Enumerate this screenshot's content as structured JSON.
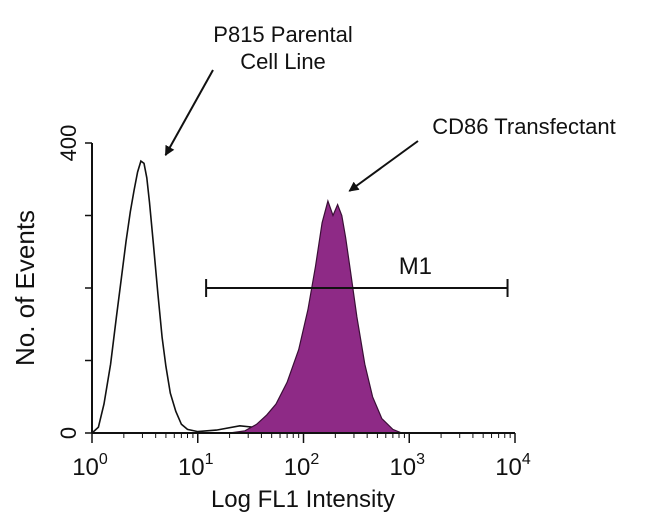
{
  "chart_data": {
    "type": "area",
    "title": "",
    "xlabel": "Log FL1 Intensity",
    "ylabel": "No. of Events",
    "x_scale": "log",
    "xlim": [
      1,
      10000
    ],
    "ylim": [
      0,
      400
    ],
    "x_ticks": [
      {
        "value": 1,
        "base": "10",
        "exp": "0"
      },
      {
        "value": 10,
        "base": "10",
        "exp": "1"
      },
      {
        "value": 100,
        "base": "10",
        "exp": "2"
      },
      {
        "value": 1000,
        "base": "10",
        "exp": "3"
      },
      {
        "value": 10000,
        "base": "10",
        "exp": "4"
      }
    ],
    "y_tick_labels": [
      {
        "value": 0,
        "label": "0"
      },
      {
        "value": 400,
        "label": "400"
      }
    ],
    "series": [
      {
        "name": "P815 Parental Cell Line",
        "style": "outline",
        "color": "#111111",
        "x": [
          1.0,
          1.15,
          1.3,
          1.5,
          1.7,
          1.9,
          2.1,
          2.3,
          2.5,
          2.7,
          2.9,
          3.1,
          3.3,
          3.5,
          3.8,
          4.2,
          4.6,
          5.0,
          5.5,
          6.2,
          7.0,
          8.0,
          10,
          15,
          25,
          45,
          60
        ],
        "y": [
          0,
          8,
          40,
          95,
          160,
          215,
          265,
          305,
          335,
          360,
          375,
          372,
          352,
          318,
          262,
          192,
          132,
          92,
          55,
          30,
          12,
          5,
          2,
          4,
          10,
          6,
          0
        ]
      },
      {
        "name": "CD86 Transfectant",
        "style": "filled",
        "color": "#8e2a86",
        "x": [
          20,
          28,
          36,
          45,
          55,
          70,
          90,
          110,
          130,
          150,
          170,
          190,
          210,
          230,
          250,
          280,
          320,
          380,
          450,
          550,
          700,
          850
        ],
        "y": [
          0,
          3,
          12,
          25,
          40,
          70,
          115,
          170,
          230,
          290,
          320,
          300,
          315,
          300,
          270,
          220,
          160,
          95,
          50,
          20,
          5,
          0
        ]
      }
    ],
    "gate": {
      "label": "M1",
      "x_start": 12,
      "x_end": 8500,
      "y": 200
    },
    "annotations": [
      {
        "text_lines": [
          "P815 Parental",
          "Cell Line"
        ],
        "points_to": {
          "x": 3.5,
          "y": 375
        }
      },
      {
        "text_lines": [
          "CD86 Transfectant"
        ],
        "points_to": {
          "x": 200,
          "y": 320
        }
      }
    ],
    "grid": false,
    "legend": "none"
  }
}
